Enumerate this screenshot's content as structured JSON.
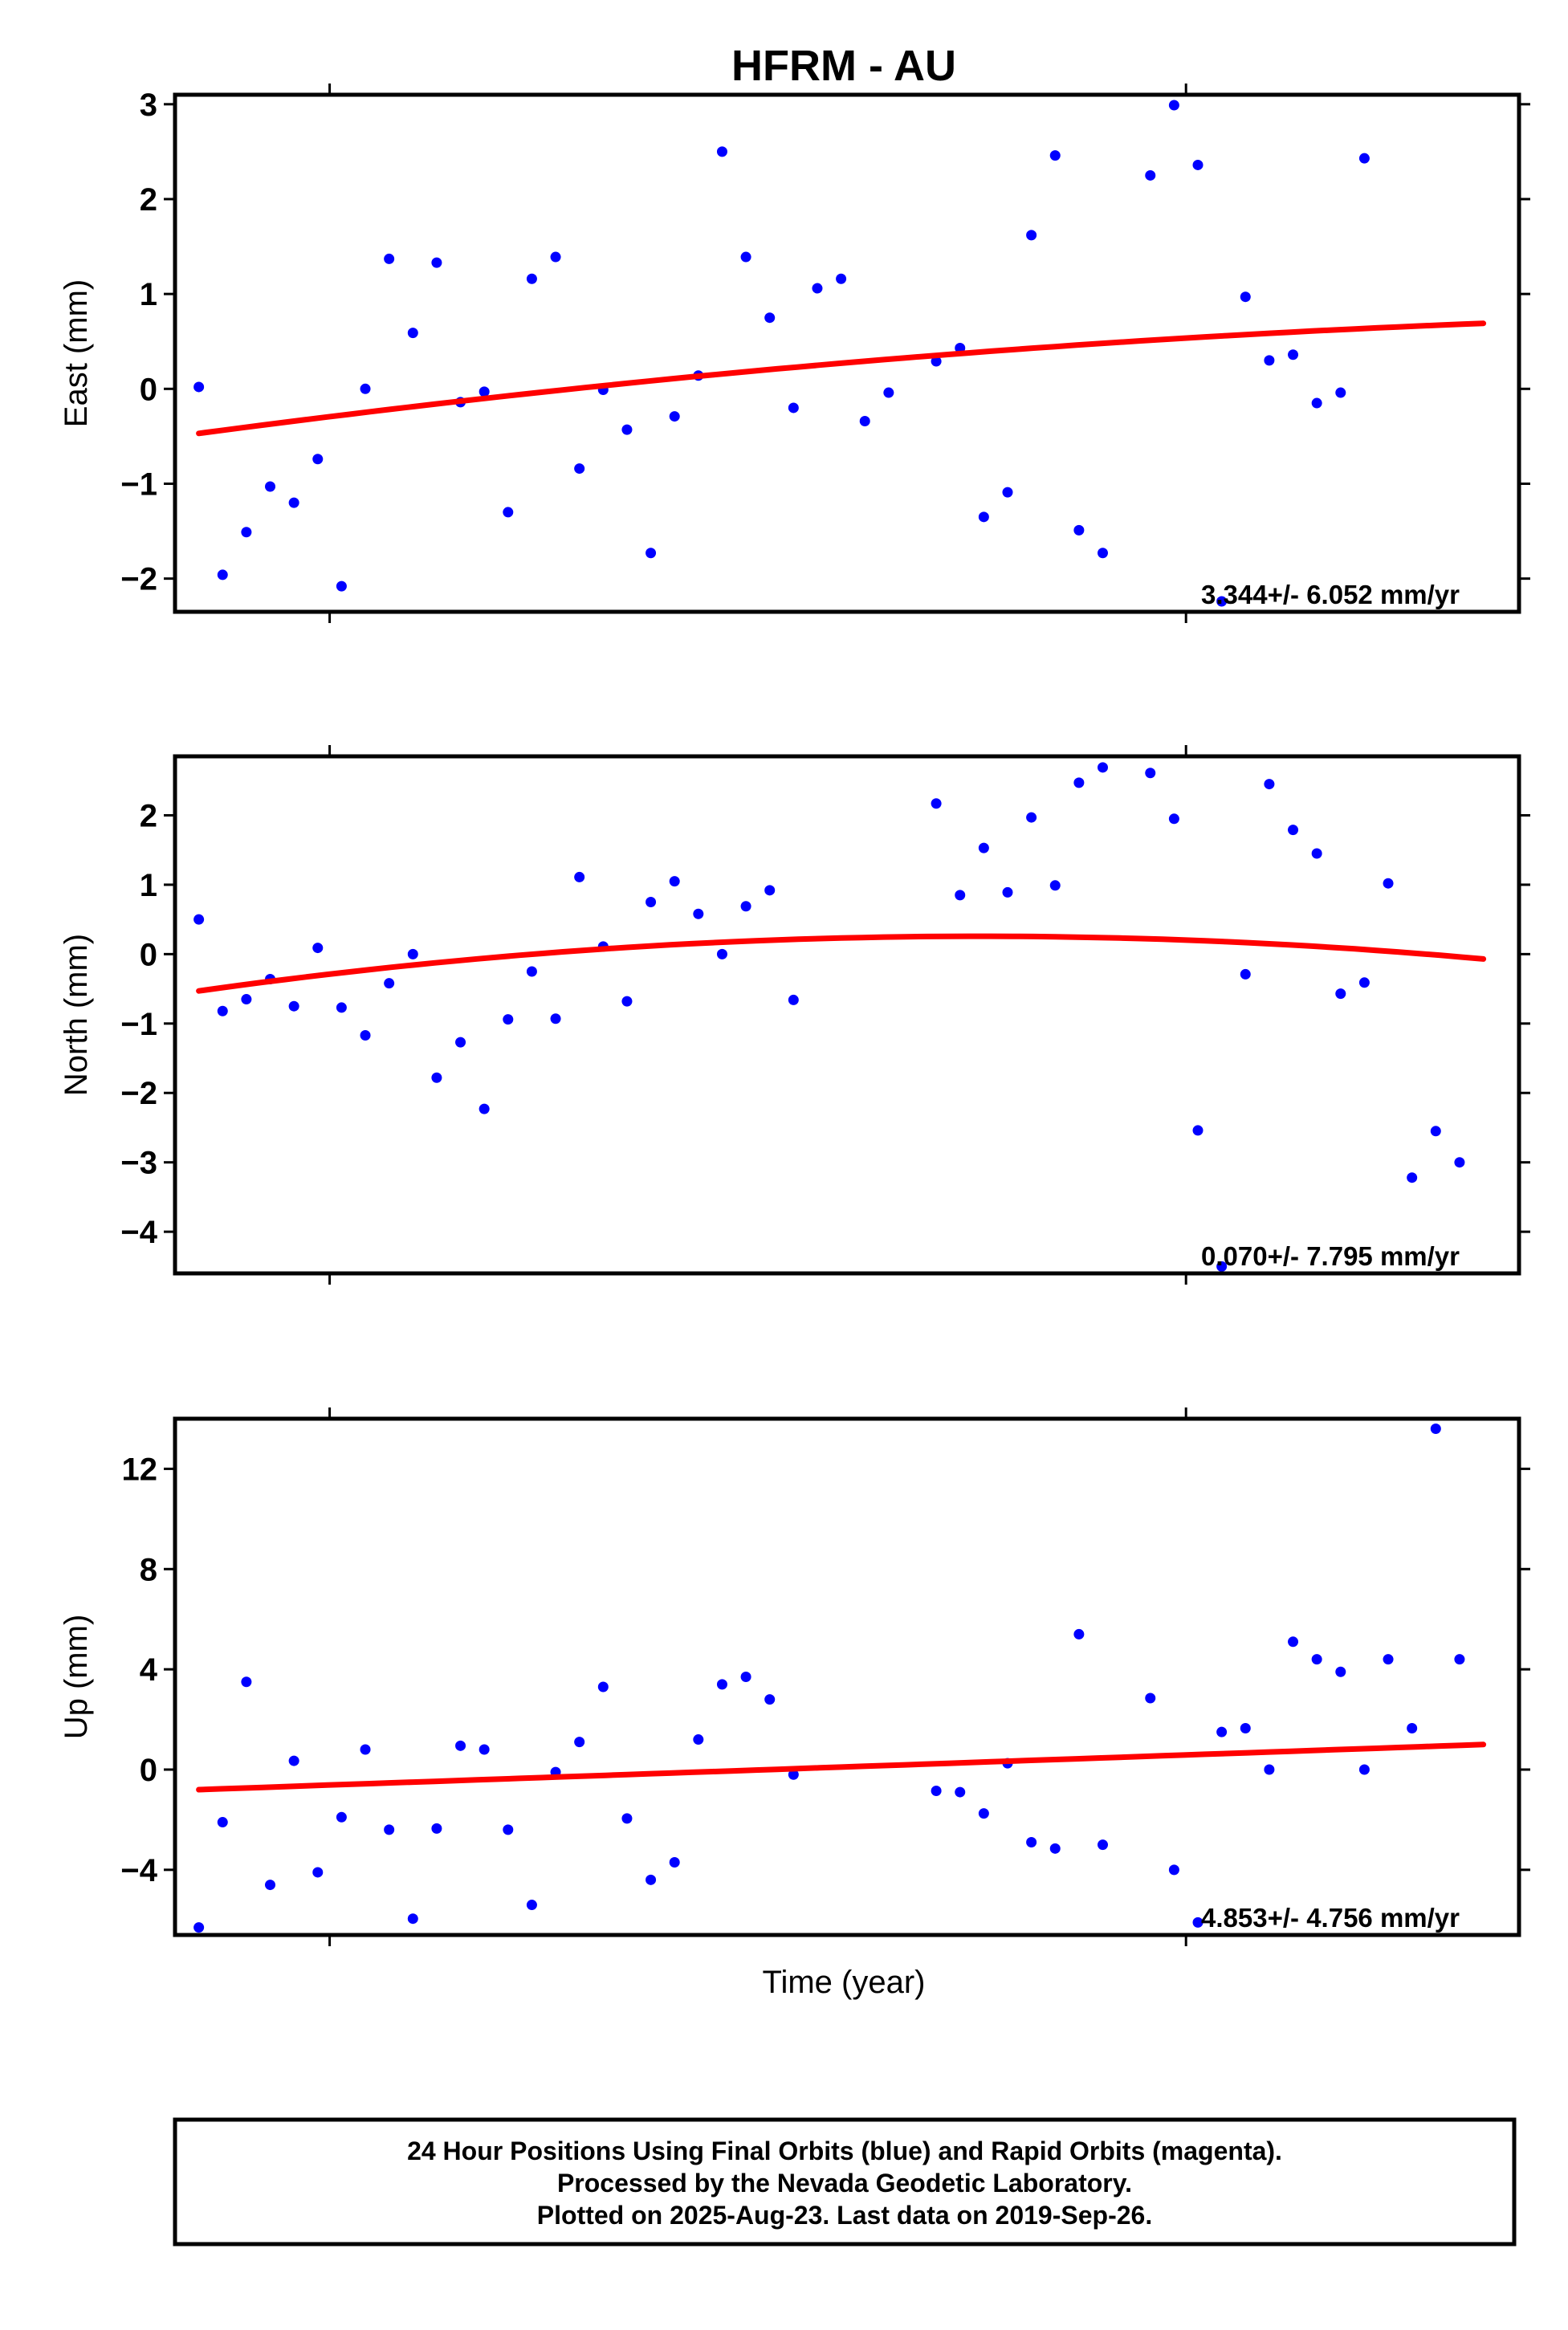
{
  "title": "HFRM - AU",
  "xlabel": "Time (year)",
  "footer": {
    "line1": "24 Hour Positions Using Final Orbits (blue) and Rapid Orbits (magenta).",
    "line2": "Processed by the Nevada Geodetic Laboratory.",
    "line3": "Plotted on 2025-Aug-23. Last data on 2019-Sep-26."
  },
  "colors": {
    "points": "#0000ff",
    "fit": "#ff0000",
    "axes": "#000000"
  },
  "chart_data": [
    {
      "type": "scatter",
      "ylabel": "East (mm)",
      "ylim": [
        -2.35,
        3.1
      ],
      "yticks": [
        -2,
        -1,
        0,
        1,
        2,
        3
      ],
      "ytick_labels": [
        "−2",
        "−1",
        "0",
        "1",
        "2",
        "3"
      ],
      "rate_label": "3.344+/- 6.052 mm/yr",
      "x": [
        1,
        2,
        3,
        4,
        5,
        6,
        7,
        8,
        9,
        10,
        11,
        12,
        13,
        14,
        15,
        16,
        17,
        18,
        19,
        20,
        21,
        22,
        23,
        24,
        25,
        26,
        27,
        28,
        29,
        30,
        32,
        33,
        34,
        35,
        36,
        37,
        38,
        39,
        41,
        42,
        43,
        44,
        45,
        46,
        47,
        48,
        49,
        50,
        51,
        52,
        53,
        54,
        55
      ],
      "y": [
        0.02,
        -1.96,
        -1.51,
        -1.03,
        -1.2,
        -0.74,
        -2.08,
        0.0,
        1.37,
        0.59,
        1.33,
        -0.14,
        -0.03,
        -1.3,
        1.16,
        1.39,
        -0.84,
        -0.01,
        -0.43,
        -1.73,
        -0.29,
        0.14,
        2.5,
        1.39,
        0.75,
        -0.2,
        1.06,
        1.16,
        -0.34,
        -0.04,
        0.29,
        0.43,
        -1.35,
        -1.09,
        1.62,
        2.46,
        -1.49,
        -1.73,
        2.25,
        2.99,
        2.36,
        -2.24,
        0.97,
        0.3,
        0.36,
        -0.15,
        -0.04,
        2.43,
        null,
        null,
        null,
        null,
        null
      ],
      "fit": {
        "type": "curve",
        "x": [
          1,
          28,
          55
        ],
        "y": [
          -0.47,
          0.27,
          0.69
        ]
      }
    },
    {
      "type": "scatter",
      "ylabel": "North (mm)",
      "ylim": [
        -4.6,
        2.85
      ],
      "yticks": [
        -4,
        -3,
        -2,
        -1,
        0,
        1,
        2
      ],
      "ytick_labels": [
        "−4",
        "−3",
        "−2",
        "−1",
        "0",
        "1",
        "2"
      ],
      "rate_label": "0.070+/- 7.795 mm/yr",
      "x": [
        1,
        2,
        3,
        4,
        5,
        6,
        7,
        8,
        9,
        10,
        11,
        12,
        13,
        14,
        15,
        16,
        17,
        18,
        19,
        20,
        21,
        22,
        23,
        24,
        25,
        26,
        32,
        33,
        34,
        35,
        36,
        37,
        38,
        39,
        41,
        42,
        43,
        44,
        45,
        46,
        47,
        48,
        49,
        50,
        51,
        52,
        53,
        54,
        55
      ],
      "y": [
        0.5,
        -0.82,
        -0.65,
        -0.36,
        -0.75,
        0.09,
        -0.77,
        -1.17,
        -0.42,
        0.0,
        -1.78,
        -1.27,
        -2.23,
        -0.94,
        -0.25,
        -0.93,
        1.11,
        0.11,
        -0.68,
        0.75,
        1.05,
        0.58,
        0.0,
        0.69,
        0.92,
        -0.66,
        2.17,
        0.85,
        1.53,
        0.89,
        1.97,
        0.99,
        2.47,
        2.69,
        2.61,
        1.95,
        -2.54,
        -4.5,
        -0.29,
        2.45,
        1.79,
        1.45,
        -0.57,
        -0.41,
        1.02,
        -3.22,
        -2.55,
        -3.0,
        null
      ],
      "fit": {
        "type": "curve",
        "x": [
          1,
          37,
          55
        ],
        "y": [
          -0.53,
          0.25,
          -0.07
        ]
      }
    },
    {
      "type": "scatter",
      "ylabel": "Up (mm)",
      "ylim": [
        -6.6,
        14.0
      ],
      "yticks": [
        -4,
        0,
        4,
        8,
        12
      ],
      "ytick_labels": [
        "−4",
        "0",
        "4",
        "8",
        "12"
      ],
      "rate_label": "4.853+/- 4.756 mm/yr",
      "x": [
        1,
        2,
        3,
        4,
        5,
        6,
        7,
        8,
        9,
        10,
        11,
        12,
        13,
        14,
        15,
        16,
        17,
        18,
        19,
        20,
        21,
        22,
        23,
        24,
        25,
        26,
        32,
        33,
        34,
        35,
        36,
        37,
        38,
        39,
        41,
        42,
        43,
        44,
        45,
        46,
        47,
        48,
        49,
        50,
        51,
        52,
        53,
        54,
        55
      ],
      "y": [
        -6.3,
        -2.1,
        3.5,
        -4.6,
        0.35,
        -4.1,
        -1.9,
        0.8,
        -2.4,
        -5.95,
        -2.35,
        0.95,
        0.8,
        -2.4,
        -5.4,
        -0.1,
        1.1,
        3.3,
        -1.95,
        -4.4,
        -3.7,
        1.2,
        3.4,
        3.7,
        2.8,
        -0.2,
        -0.85,
        -0.9,
        -1.75,
        0.25,
        -2.9,
        -3.15,
        5.4,
        -3.0,
        2.85,
        -4.0,
        -6.1,
        1.5,
        1.65,
        0.0,
        5.1,
        4.4,
        3.9,
        0.0,
        4.4,
        1.65,
        13.6,
        4.4,
        null
      ],
      "fit": {
        "type": "line",
        "x": [
          1,
          55
        ],
        "y": [
          -0.8,
          1.0
        ]
      }
    }
  ]
}
